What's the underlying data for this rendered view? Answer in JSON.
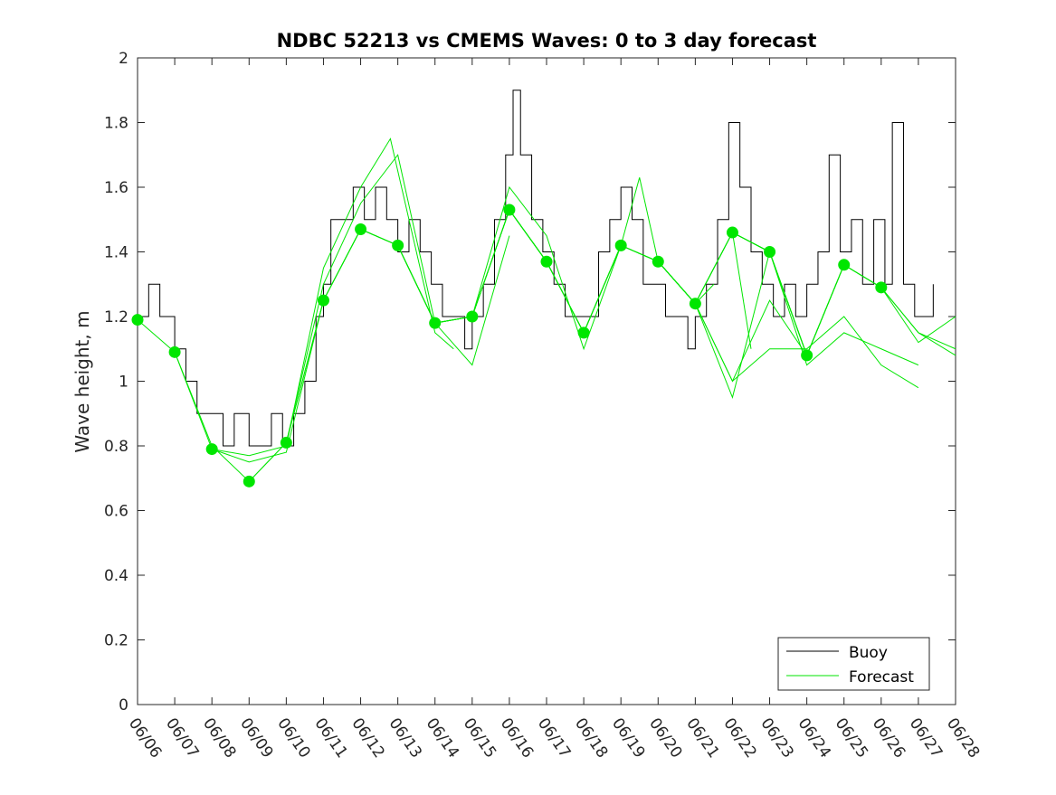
{
  "chart_data": {
    "type": "line",
    "title": "NDBC 52213 vs CMEMS Waves: 0 to 3 day forecast",
    "ylabel": "Wave height, m",
    "xlabel": "",
    "ylim": [
      0,
      2
    ],
    "xlim": [
      0,
      22
    ],
    "x_ticks": [
      "06/06",
      "06/07",
      "06/08",
      "06/09",
      "06/10",
      "06/11",
      "06/12",
      "06/13",
      "06/14",
      "06/15",
      "06/16",
      "06/17",
      "06/18",
      "06/19",
      "06/20",
      "06/21",
      "06/22",
      "06/23",
      "06/24",
      "06/25",
      "06/26",
      "06/27",
      "06/28"
    ],
    "y_ticks": [
      "0",
      "0.2",
      "0.4",
      "0.6",
      "0.8",
      "1",
      "1.2",
      "1.4",
      "1.6",
      "1.8",
      "2"
    ],
    "grid": false,
    "legend_position": "bottom-right",
    "legend": [
      {
        "label": "Buoy",
        "color": "#000000"
      },
      {
        "label": "Forecast",
        "color": "#00e600"
      }
    ],
    "series": [
      {
        "name": "Buoy",
        "color": "#000000",
        "points": [
          [
            0,
            1.2
          ],
          [
            0.3,
            1.3
          ],
          [
            0.6,
            1.2
          ],
          [
            0.9,
            1.2
          ],
          [
            1.0,
            1.1
          ],
          [
            1.3,
            1.0
          ],
          [
            1.6,
            0.9
          ],
          [
            1.9,
            0.9
          ],
          [
            2.3,
            0.8
          ],
          [
            2.6,
            0.9
          ],
          [
            3.0,
            0.8
          ],
          [
            3.3,
            0.8
          ],
          [
            3.6,
            0.9
          ],
          [
            3.9,
            0.8
          ],
          [
            4.2,
            0.9
          ],
          [
            4.5,
            1.0
          ],
          [
            4.8,
            1.2
          ],
          [
            5.0,
            1.3
          ],
          [
            5.2,
            1.5
          ],
          [
            5.5,
            1.5
          ],
          [
            5.8,
            1.6
          ],
          [
            6.1,
            1.5
          ],
          [
            6.4,
            1.6
          ],
          [
            6.7,
            1.5
          ],
          [
            7.0,
            1.4
          ],
          [
            7.3,
            1.5
          ],
          [
            7.6,
            1.4
          ],
          [
            7.9,
            1.3
          ],
          [
            8.2,
            1.2
          ],
          [
            8.5,
            1.2
          ],
          [
            8.8,
            1.1
          ],
          [
            9.0,
            1.2
          ],
          [
            9.3,
            1.3
          ],
          [
            9.6,
            1.5
          ],
          [
            9.9,
            1.7
          ],
          [
            10.1,
            1.9
          ],
          [
            10.3,
            1.7
          ],
          [
            10.6,
            1.5
          ],
          [
            10.9,
            1.4
          ],
          [
            11.2,
            1.3
          ],
          [
            11.5,
            1.2
          ],
          [
            11.8,
            1.2
          ],
          [
            12.1,
            1.2
          ],
          [
            12.4,
            1.4
          ],
          [
            12.7,
            1.5
          ],
          [
            13.0,
            1.6
          ],
          [
            13.3,
            1.5
          ],
          [
            13.6,
            1.3
          ],
          [
            13.9,
            1.3
          ],
          [
            14.2,
            1.2
          ],
          [
            14.5,
            1.2
          ],
          [
            14.8,
            1.1
          ],
          [
            15.0,
            1.2
          ],
          [
            15.3,
            1.3
          ],
          [
            15.6,
            1.5
          ],
          [
            15.9,
            1.8
          ],
          [
            16.2,
            1.6
          ],
          [
            16.5,
            1.4
          ],
          [
            16.8,
            1.3
          ],
          [
            17.1,
            1.2
          ],
          [
            17.4,
            1.3
          ],
          [
            17.7,
            1.2
          ],
          [
            18.0,
            1.3
          ],
          [
            18.3,
            1.4
          ],
          [
            18.6,
            1.7
          ],
          [
            18.9,
            1.4
          ],
          [
            19.2,
            1.5
          ],
          [
            19.5,
            1.3
          ],
          [
            19.8,
            1.5
          ],
          [
            20.1,
            1.3
          ],
          [
            20.3,
            1.8
          ],
          [
            20.6,
            1.3
          ],
          [
            20.9,
            1.2
          ],
          [
            21.2,
            1.2
          ],
          [
            21.4,
            1.3
          ]
        ]
      },
      {
        "name": "Forecast",
        "color": "#00e600",
        "lines": [
          [
            [
              0,
              1.19
            ],
            [
              1,
              1.09
            ],
            [
              2,
              0.79
            ],
            [
              3,
              0.75
            ],
            [
              4,
              0.78
            ],
            [
              5,
              1.25
            ],
            [
              6,
              1.47
            ],
            [
              7,
              1.42
            ]
          ],
          [
            [
              1,
              1.09
            ],
            [
              2,
              0.8
            ],
            [
              3,
              0.69
            ],
            [
              4,
              0.81
            ],
            [
              5,
              1.3
            ],
            [
              6,
              1.55
            ],
            [
              7,
              1.7
            ],
            [
              8,
              1.18
            ]
          ],
          [
            [
              2,
              0.79
            ],
            [
              3,
              0.77
            ],
            [
              4,
              0.8
            ],
            [
              5,
              1.35
            ],
            [
              6,
              1.6
            ],
            [
              6.8,
              1.75
            ],
            [
              8,
              1.15
            ],
            [
              8.5,
              1.1
            ]
          ],
          [
            [
              3,
              0.69
            ],
            [
              4,
              0.81
            ],
            [
              5,
              1.25
            ],
            [
              6,
              1.47
            ],
            [
              7,
              1.42
            ],
            [
              8,
              1.18
            ],
            [
              9,
              1.05
            ],
            [
              10,
              1.45
            ]
          ],
          [
            [
              4,
              0.81
            ],
            [
              5,
              1.25
            ],
            [
              6,
              1.47
            ],
            [
              7,
              1.42
            ],
            [
              8,
              1.18
            ],
            [
              9,
              1.2
            ],
            [
              10,
              1.53
            ],
            [
              11,
              1.37
            ]
          ],
          [
            [
              5,
              1.25
            ],
            [
              6,
              1.47
            ],
            [
              7,
              1.42
            ],
            [
              8,
              1.18
            ],
            [
              9,
              1.2
            ],
            [
              10,
              1.53
            ],
            [
              11,
              1.37
            ],
            [
              12,
              1.15
            ]
          ],
          [
            [
              6,
              1.47
            ],
            [
              7,
              1.42
            ],
            [
              8,
              1.18
            ],
            [
              9,
              1.2
            ],
            [
              10,
              1.6
            ],
            [
              11,
              1.45
            ],
            [
              12,
              1.1
            ],
            [
              13,
              1.42
            ]
          ],
          [
            [
              7,
              1.42
            ],
            [
              8,
              1.18
            ],
            [
              9,
              1.2
            ],
            [
              10,
              1.53
            ],
            [
              11,
              1.37
            ],
            [
              12,
              1.15
            ],
            [
              13,
              1.42
            ],
            [
              13.5,
              1.63
            ],
            [
              14,
              1.37
            ]
          ],
          [
            [
              8,
              1.18
            ],
            [
              9,
              1.2
            ],
            [
              10,
              1.53
            ],
            [
              11,
              1.37
            ],
            [
              12,
              1.15
            ],
            [
              13,
              1.42
            ],
            [
              14,
              1.37
            ],
            [
              15,
              1.24
            ],
            [
              15.5,
              1.3
            ]
          ],
          [
            [
              9,
              1.2
            ],
            [
              10,
              1.53
            ],
            [
              11,
              1.37
            ],
            [
              12,
              1.15
            ],
            [
              13,
              1.42
            ],
            [
              14,
              1.37
            ],
            [
              15,
              1.24
            ],
            [
              16,
              1.46
            ],
            [
              16.5,
              1.1
            ]
          ],
          [
            [
              10,
              1.53
            ],
            [
              11,
              1.37
            ],
            [
              12,
              1.15
            ],
            [
              13,
              1.42
            ],
            [
              14,
              1.37
            ],
            [
              15,
              1.24
            ],
            [
              16,
              0.95
            ],
            [
              17,
              1.4
            ],
            [
              18,
              1.08
            ]
          ],
          [
            [
              11,
              1.37
            ],
            [
              12,
              1.15
            ],
            [
              13,
              1.42
            ],
            [
              14,
              1.37
            ],
            [
              15,
              1.24
            ],
            [
              16,
              1.0
            ],
            [
              17,
              1.25
            ],
            [
              18,
              1.08
            ],
            [
              19,
              1.36
            ]
          ],
          [
            [
              12,
              1.15
            ],
            [
              13,
              1.42
            ],
            [
              14,
              1.37
            ],
            [
              15,
              1.24
            ],
            [
              16,
              1.46
            ],
            [
              17,
              1.4
            ],
            [
              18,
              1.08
            ],
            [
              19,
              1.36
            ],
            [
              20,
              1.29
            ]
          ],
          [
            [
              13,
              1.42
            ],
            [
              14,
              1.37
            ],
            [
              15,
              1.24
            ],
            [
              16,
              1.46
            ],
            [
              17,
              1.4
            ],
            [
              18,
              1.08
            ],
            [
              19,
              1.36
            ],
            [
              20,
              1.29
            ],
            [
              21,
              1.15
            ],
            [
              22,
              1.1
            ]
          ],
          [
            [
              14,
              1.37
            ],
            [
              15,
              1.24
            ],
            [
              16,
              1.0
            ],
            [
              17,
              1.1
            ],
            [
              18,
              1.1
            ],
            [
              19,
              1.2
            ],
            [
              20,
              1.05
            ],
            [
              21,
              0.98
            ]
          ],
          [
            [
              15,
              1.24
            ],
            [
              16,
              1.46
            ],
            [
              17,
              1.4
            ],
            [
              18,
              1.08
            ],
            [
              19,
              1.36
            ],
            [
              20,
              1.29
            ],
            [
              21,
              1.12
            ],
            [
              22,
              1.2
            ]
          ],
          [
            [
              16,
              1.46
            ],
            [
              17,
              1.4
            ],
            [
              18,
              1.05
            ],
            [
              19,
              1.15
            ],
            [
              20,
              1.1
            ],
            [
              21,
              1.05
            ]
          ],
          [
            [
              17,
              1.4
            ],
            [
              18,
              1.08
            ],
            [
              19,
              1.36
            ],
            [
              20,
              1.29
            ],
            [
              21,
              1.15
            ],
            [
              22,
              1.08
            ]
          ]
        ],
        "markers": [
          [
            0,
            1.19
          ],
          [
            1,
            1.09
          ],
          [
            2,
            0.79
          ],
          [
            3,
            0.69
          ],
          [
            4,
            0.81
          ],
          [
            5,
            1.25
          ],
          [
            6,
            1.47
          ],
          [
            7,
            1.42
          ],
          [
            8,
            1.18
          ],
          [
            9,
            1.2
          ],
          [
            10,
            1.53
          ],
          [
            11,
            1.37
          ],
          [
            12,
            1.15
          ],
          [
            13,
            1.42
          ],
          [
            14,
            1.37
          ],
          [
            15,
            1.24
          ],
          [
            16,
            1.46
          ],
          [
            17,
            1.4
          ],
          [
            18,
            1.08
          ],
          [
            19,
            1.36
          ],
          [
            20,
            1.29
          ]
        ]
      }
    ]
  }
}
